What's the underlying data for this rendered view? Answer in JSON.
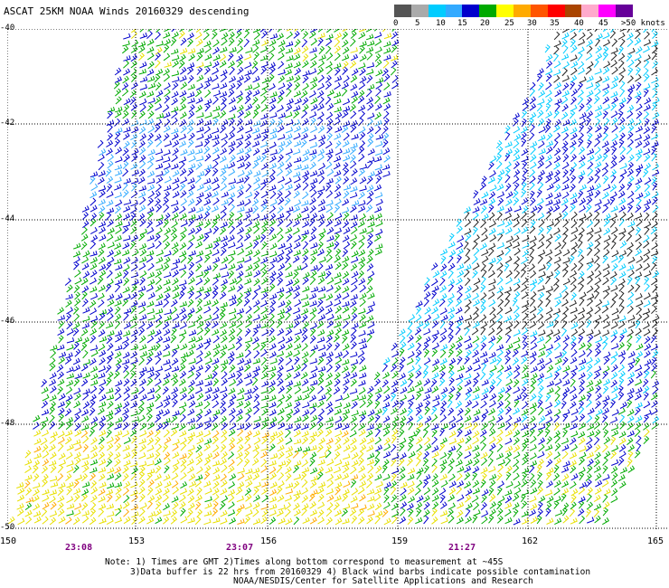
{
  "title": "ASCAT 25KM NOAA Winds 20160329 descending",
  "colorbar": {
    "colors": [
      "#555555",
      "#aaaaaa",
      "#00ccff",
      "#33aaff",
      "#0000cc",
      "#00aa00",
      "#ffff00",
      "#ffaa00",
      "#ff5500",
      "#ff0000",
      "#aa4400",
      "#ffaacc",
      "#ff00ff",
      "#660099"
    ],
    "labels": [
      "0",
      "5",
      "10",
      "15",
      "20",
      "25",
      "30",
      "35",
      "40",
      "45",
      ">50 knots"
    ]
  },
  "chart_data": {
    "type": "wind-barb map",
    "lat_labels": [
      "-40",
      "-42",
      "-44",
      "-46",
      "-48",
      "-50"
    ],
    "lon_labels": [
      "150",
      "153",
      "156",
      "159",
      "162",
      "165"
    ],
    "lat_range": [
      -50,
      -40
    ],
    "lon_range": [
      150,
      165
    ],
    "grid": true,
    "time_labels": [
      "23:08",
      "23:07",
      "21:27"
    ]
  },
  "notes": {
    "line1": "Note: 1) Times are GMT 2)Times along bottom correspond to measurement at ~45S",
    "line2": "3)Data buffer is 22 hrs from 20160329 4) Black wind barbs indicate possible contamination",
    "line3": "NOAA/NESDIS/Center for Satellite Applications and Research"
  }
}
